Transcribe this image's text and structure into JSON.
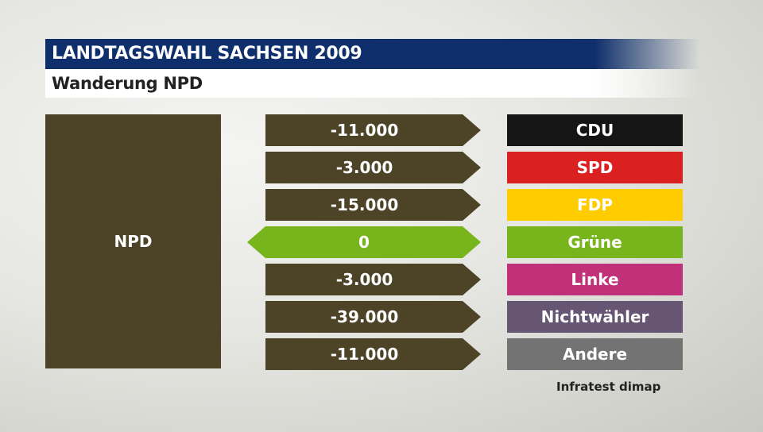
{
  "header": {
    "title": "LANDTAGSWAHL SACHSEN 2009",
    "subtitle": "Wanderung NPD"
  },
  "footer": {
    "source": "Infratest dimap"
  },
  "chart_data": {
    "type": "table",
    "title": "LANDTAGSWAHL SACHSEN 2009",
    "subtitle": "Wanderung NPD",
    "source_party": "NPD",
    "source_color": "#4d4428",
    "flows": [
      {
        "party": "CDU",
        "value": -11000,
        "label": "-11.000",
        "party_color": "#151515",
        "direction": "out"
      },
      {
        "party": "SPD",
        "value": -3000,
        "label": "-3.000",
        "party_color": "#da2020",
        "direction": "out"
      },
      {
        "party": "FDP",
        "value": -15000,
        "label": "-15.000",
        "party_color": "#ffcc00",
        "direction": "out"
      },
      {
        "party": "Grüne",
        "value": 0,
        "label": "0",
        "party_color": "#78b51c",
        "direction": "both"
      },
      {
        "party": "Linke",
        "value": -3000,
        "label": "-3.000",
        "party_color": "#c0317a",
        "direction": "out"
      },
      {
        "party": "Nichtwähler",
        "value": -39000,
        "label": "-39.000",
        "party_color": "#675574",
        "direction": "out"
      },
      {
        "party": "Andere",
        "value": -11000,
        "label": "-11.000",
        "party_color": "#737373",
        "direction": "out"
      }
    ]
  }
}
